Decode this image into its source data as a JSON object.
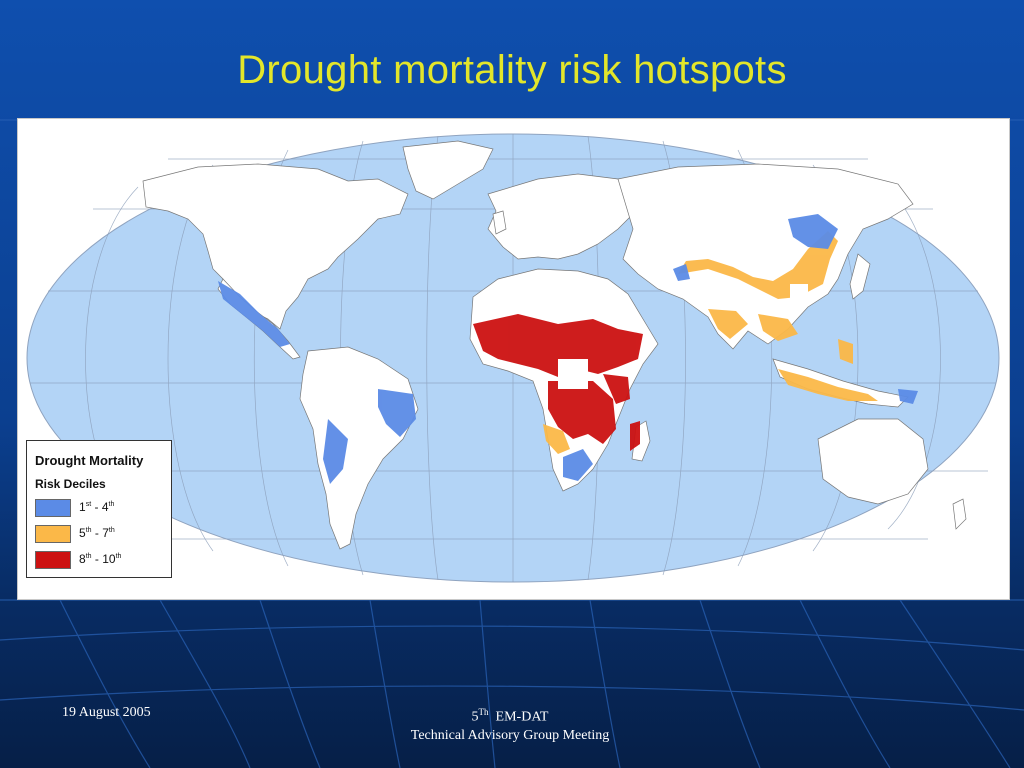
{
  "slide": {
    "title": "Drought mortality risk hotspots",
    "footer_date": "19 August 2005",
    "footer_meeting_num": "5",
    "footer_meeting_sup": "Th",
    "footer_meeting_org": "EM-DAT",
    "footer_meeting_name": "Technical Advisory Group Meeting"
  },
  "legend": {
    "title": "Drought Mortality",
    "subtitle": "Risk Deciles",
    "items": [
      {
        "from": "1",
        "from_sup": "st",
        "sep": " - ",
        "to": "4",
        "to_sup": "th",
        "color": "#5b8be6"
      },
      {
        "from": "5",
        "from_sup": "th",
        "sep": " - ",
        "to": "7",
        "to_sup": "th",
        "color": "#fbb848"
      },
      {
        "from": "8",
        "from_sup": "th",
        "sep": " - ",
        "to": "10",
        "to_sup": "th",
        "color": "#cc1111"
      }
    ]
  },
  "map": {
    "ocean_color": "#b3d4f6",
    "land_color": "#ffffff",
    "graticule_color": "#8a9db8"
  }
}
